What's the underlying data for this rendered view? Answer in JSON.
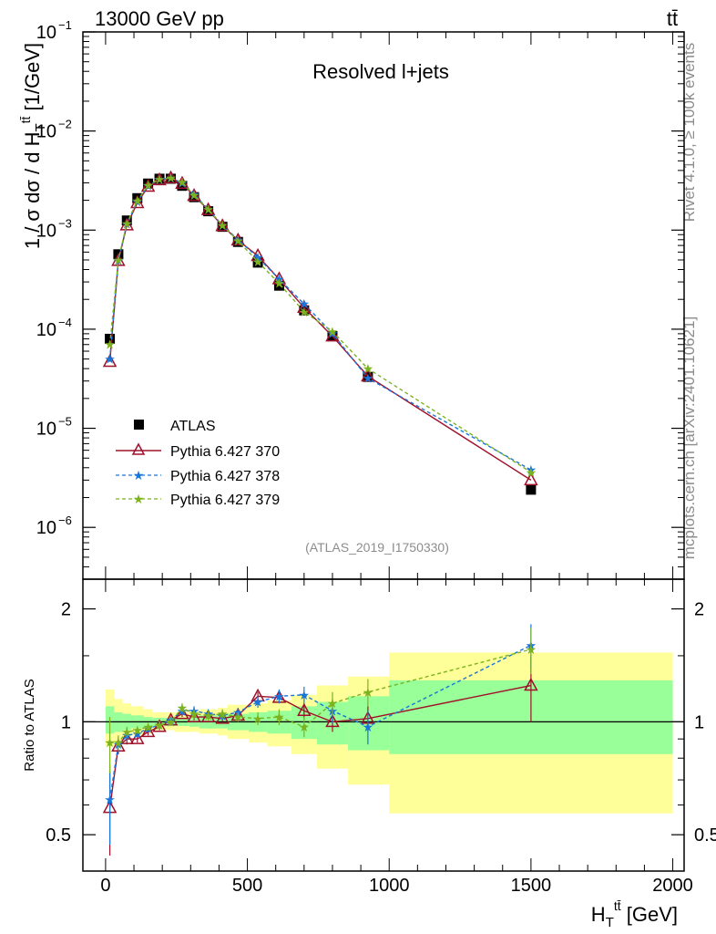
{
  "header": {
    "energy_label": "13000 GeV pp",
    "process_label": "tt̄"
  },
  "side_labels": {
    "rivet": "Rivet 4.1.0, ≥ 100k events",
    "mcplots": "mcplots.cern.ch [arXiv:2401.10621]"
  },
  "chart_data": [
    {
      "type": "line",
      "title": "Resolved l+jets",
      "watermark": "(ATLAS_2019_I1750330)",
      "ylabel_pre": "1 / σ dσ / d H",
      "ylabel_sup": "tt̄",
      "ylabel_sub": "T",
      "ylabel_post": " [1/GeV]",
      "yscale": "log",
      "xlim": [
        -80,
        2040
      ],
      "ylim": [
        3e-07,
        0.1
      ],
      "yticks": [
        {
          "v": 1e-06,
          "label": "10",
          "exp": "−6"
        },
        {
          "v": 1e-05,
          "label": "10",
          "exp": "−5"
        },
        {
          "v": 0.0001,
          "label": "10",
          "exp": "−4"
        },
        {
          "v": 0.001,
          "label": "10",
          "exp": "−3"
        },
        {
          "v": 0.01,
          "label": "10",
          "exp": "−2"
        },
        {
          "v": 0.1,
          "label": "10",
          "exp": "−1"
        }
      ],
      "legend_position": "bottom-left",
      "x": [
        15,
        45,
        75,
        112,
        150,
        190,
        230,
        270,
        312,
        362,
        412,
        467,
        537,
        612,
        700,
        800,
        925,
        1500
      ],
      "series": [
        {
          "name": "ATLAS",
          "color": "#000000",
          "marker": "square",
          "values": [
            8e-05,
            0.00057,
            0.00125,
            0.0021,
            0.00295,
            0.0033,
            0.0033,
            0.0028,
            0.00215,
            0.00155,
            0.00108,
            0.00076,
            0.00047,
            0.000275,
            0.000155,
            8.5e-05,
            3.3e-05,
            2.4e-06
          ]
        },
        {
          "name": "Pythia 6.427 370",
          "color": "#a0102a",
          "marker": "triangle",
          "dash": "solid",
          "values": [
            4.7e-05,
            0.00049,
            0.00112,
            0.00188,
            0.00275,
            0.0032,
            0.00335,
            0.00295,
            0.00222,
            0.0016,
            0.0011,
            0.00079,
            0.00055,
            0.00032,
            0.000165,
            8.5e-05,
            3.35e-05,
            3e-06
          ]
        },
        {
          "name": "Pythia 6.427 378",
          "color": "#1a75d9",
          "marker": "star",
          "dash": "dashed",
          "values": [
            5e-05,
            0.000495,
            0.00115,
            0.00195,
            0.00282,
            0.00325,
            0.00335,
            0.003,
            0.0023,
            0.00162,
            0.00112,
            0.0008,
            0.00053,
            0.00032,
            0.00018,
            9.1e-05,
            3.2e-05,
            3.8e-06
          ]
        },
        {
          "name": "Pythia 6.427 379",
          "color": "#7bb21e",
          "marker": "star",
          "dash": "dashed",
          "values": [
            7e-05,
            0.0005,
            0.00117,
            0.00198,
            0.00285,
            0.00325,
            0.00335,
            0.00305,
            0.00225,
            0.00162,
            0.00112,
            0.00078,
            0.00048,
            0.00029,
            0.00015,
            9.5e-05,
            4e-05,
            3.6e-06
          ]
        }
      ]
    },
    {
      "type": "line",
      "ylabel": "Ratio to ATLAS",
      "xlabel_pre": "H",
      "xlabel_sup": "tt̄",
      "xlabel_sub": "T",
      "xlabel_post": " [GeV]",
      "yscale": "log",
      "xlim": [
        -80,
        2040
      ],
      "ylim": [
        0.4,
        2.4
      ],
      "yticks": [
        {
          "v": 0.5,
          "label": "0.5"
        },
        {
          "v": 1,
          "label": "1"
        },
        {
          "v": 2,
          "label": "2"
        }
      ],
      "xticks": [
        {
          "v": 0,
          "label": "0"
        },
        {
          "v": 500,
          "label": "500"
        },
        {
          "v": 1000,
          "label": "1000"
        },
        {
          "v": 1500,
          "label": "1500"
        },
        {
          "v": 2000,
          "label": "2000"
        }
      ],
      "bin_edges": [
        0,
        30,
        60,
        90,
        135,
        165,
        215,
        245,
        295,
        330,
        395,
        430,
        505,
        570,
        655,
        745,
        855,
        1000,
        2000
      ],
      "band_inner": [
        [
          0.93,
          1.1
        ],
        [
          0.94,
          1.06
        ],
        [
          0.95,
          1.05
        ],
        [
          0.96,
          1.04
        ],
        [
          0.97,
          1.03
        ],
        [
          0.975,
          1.025
        ],
        [
          0.975,
          1.025
        ],
        [
          0.975,
          1.025
        ],
        [
          0.97,
          1.03
        ],
        [
          0.96,
          1.04
        ],
        [
          0.96,
          1.04
        ],
        [
          0.95,
          1.05
        ],
        [
          0.94,
          1.06
        ],
        [
          0.93,
          1.07
        ],
        [
          0.9,
          1.1
        ],
        [
          0.87,
          1.13
        ],
        [
          0.84,
          1.17
        ],
        [
          0.82,
          1.29
        ]
      ],
      "band_outer": [
        [
          0.86,
          1.22
        ],
        [
          0.88,
          1.15
        ],
        [
          0.9,
          1.12
        ],
        [
          0.92,
          1.1
        ],
        [
          0.93,
          1.08
        ],
        [
          0.95,
          1.06
        ],
        [
          0.95,
          1.06
        ],
        [
          0.94,
          1.06
        ],
        [
          0.94,
          1.07
        ],
        [
          0.93,
          1.08
        ],
        [
          0.92,
          1.09
        ],
        [
          0.9,
          1.11
        ],
        [
          0.88,
          1.12
        ],
        [
          0.86,
          1.14
        ],
        [
          0.82,
          1.18
        ],
        [
          0.75,
          1.25
        ],
        [
          0.68,
          1.32
        ],
        [
          0.57,
          1.53
        ]
      ],
      "x": [
        15,
        45,
        75,
        112,
        150,
        190,
        230,
        270,
        312,
        362,
        412,
        467,
        537,
        612,
        700,
        800,
        925,
        1500
      ],
      "series": [
        {
          "name": "Pythia 6.427 370",
          "color": "#a0102a",
          "marker": "triangle",
          "dash": "solid",
          "values": [
            0.59,
            0.86,
            0.9,
            0.9,
            0.94,
            0.97,
            1.01,
            1.05,
            1.03,
            1.03,
            1.02,
            1.04,
            1.17,
            1.16,
            1.07,
            1.0,
            1.02,
            1.25
          ],
          "err": [
            0.15,
            0.04,
            0.03,
            0.02,
            0.02,
            0.02,
            0.02,
            0.02,
            0.02,
            0.02,
            0.02,
            0.02,
            0.03,
            0.04,
            0.05,
            0.06,
            0.08,
            0.25
          ]
        },
        {
          "name": "Pythia 6.427 378",
          "color": "#1a75d9",
          "marker": "star",
          "dash": "dashed",
          "values": [
            0.62,
            0.87,
            0.92,
            0.93,
            0.96,
            0.98,
            1.01,
            1.07,
            1.07,
            1.05,
            1.04,
            1.06,
            1.13,
            1.17,
            1.18,
            1.07,
            0.97,
            1.6
          ],
          "err": [
            0.15,
            0.04,
            0.03,
            0.02,
            0.02,
            0.02,
            0.02,
            0.03,
            0.03,
            0.03,
            0.03,
            0.03,
            0.04,
            0.05,
            0.06,
            0.08,
            0.1,
            0.22
          ]
        },
        {
          "name": "Pythia 6.427 379",
          "color": "#7bb21e",
          "marker": "star",
          "dash": "dashed",
          "values": [
            0.88,
            0.88,
            0.94,
            0.95,
            0.97,
            0.98,
            1.0,
            1.09,
            1.05,
            1.04,
            1.05,
            1.03,
            1.02,
            1.03,
            0.97,
            1.12,
            1.2,
            1.56
          ],
          "err": [
            0.15,
            0.04,
            0.03,
            0.02,
            0.02,
            0.02,
            0.02,
            0.03,
            0.03,
            0.03,
            0.03,
            0.03,
            0.04,
            0.05,
            0.06,
            0.08,
            0.1,
            0.22
          ]
        }
      ]
    }
  ]
}
